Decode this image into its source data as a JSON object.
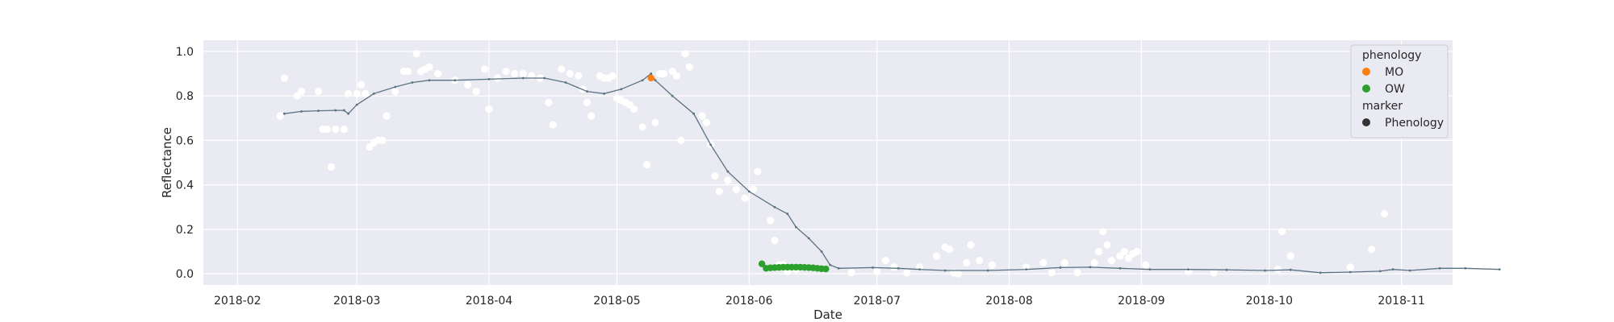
{
  "chart_data": {
    "type": "scatter",
    "title": "",
    "xlabel": "Date",
    "ylabel": "Reflectance",
    "x_axis_type": "date",
    "xlim": [
      "2018-01-24",
      "2018-11-13"
    ],
    "ylim": [
      -0.05,
      1.05
    ],
    "grid": true,
    "background": "#eaeaf2",
    "legend_position": "top-right",
    "x_ticks": [
      {
        "date": "2018-02-01",
        "label": "2018-02"
      },
      {
        "date": "2018-03-01",
        "label": "2018-03"
      },
      {
        "date": "2018-04-01",
        "label": "2018-04"
      },
      {
        "date": "2018-05-01",
        "label": "2018-05"
      },
      {
        "date": "2018-06-01",
        "label": "2018-06"
      },
      {
        "date": "2018-07-01",
        "label": "2018-07"
      },
      {
        "date": "2018-08-01",
        "label": "2018-08"
      },
      {
        "date": "2018-09-01",
        "label": "2018-09"
      },
      {
        "date": "2018-10-01",
        "label": "2018-10"
      },
      {
        "date": "2018-11-01",
        "label": "2018-11"
      }
    ],
    "y_ticks": [
      {
        "value": 0.0,
        "label": "0.0"
      },
      {
        "value": 0.2,
        "label": "0.2"
      },
      {
        "value": 0.4,
        "label": "0.4"
      },
      {
        "value": 0.6,
        "label": "0.6"
      },
      {
        "value": 0.8,
        "label": "0.8"
      },
      {
        "value": 1.0,
        "label": "1.0"
      }
    ],
    "legend": {
      "groups": [
        {
          "title": "phenology",
          "entries": [
            {
              "label": "MO",
              "color": "#ff7f0e"
            },
            {
              "label": "OW",
              "color": "#2ca02c"
            }
          ]
        },
        {
          "title": "marker",
          "entries": [
            {
              "label": "Phenology",
              "color": "#333333"
            }
          ]
        }
      ]
    },
    "smoothed_series": {
      "color": "#5a7282",
      "points": [
        [
          "2018-02-12",
          0.72
        ],
        [
          "2018-02-16",
          0.73
        ],
        [
          "2018-02-20",
          0.733
        ],
        [
          "2018-02-24",
          0.735
        ],
        [
          "2018-02-26",
          0.735
        ],
        [
          "2018-02-27",
          0.72
        ],
        [
          "2018-03-01",
          0.76
        ],
        [
          "2018-03-05",
          0.81
        ],
        [
          "2018-03-10",
          0.84
        ],
        [
          "2018-03-14",
          0.86
        ],
        [
          "2018-03-18",
          0.87
        ],
        [
          "2018-03-24",
          0.87
        ],
        [
          "2018-04-01",
          0.875
        ],
        [
          "2018-04-09",
          0.88
        ],
        [
          "2018-04-14",
          0.88
        ],
        [
          "2018-04-19",
          0.86
        ],
        [
          "2018-04-24",
          0.82
        ],
        [
          "2018-04-28",
          0.81
        ],
        [
          "2018-05-02",
          0.83
        ],
        [
          "2018-05-07",
          0.87
        ],
        [
          "2018-05-09",
          0.9
        ],
        [
          "2018-05-10",
          0.87
        ],
        [
          "2018-05-14",
          0.8
        ],
        [
          "2018-05-19",
          0.72
        ],
        [
          "2018-05-23",
          0.58
        ],
        [
          "2018-05-27",
          0.46
        ],
        [
          "2018-06-01",
          0.37
        ],
        [
          "2018-06-07",
          0.3
        ],
        [
          "2018-06-10",
          0.27
        ],
        [
          "2018-06-12",
          0.21
        ],
        [
          "2018-06-15",
          0.16
        ],
        [
          "2018-06-18",
          0.1
        ],
        [
          "2018-06-20",
          0.04
        ],
        [
          "2018-06-22",
          0.025
        ],
        [
          "2018-06-30",
          0.028
        ],
        [
          "2018-07-06",
          0.025
        ],
        [
          "2018-07-11",
          0.02
        ],
        [
          "2018-07-17",
          0.015
        ],
        [
          "2018-07-27",
          0.015
        ],
        [
          "2018-08-05",
          0.02
        ],
        [
          "2018-08-13",
          0.028
        ],
        [
          "2018-08-20",
          0.03
        ],
        [
          "2018-08-27",
          0.025
        ],
        [
          "2018-09-03",
          0.02
        ],
        [
          "2018-09-12",
          0.02
        ],
        [
          "2018-09-21",
          0.018
        ],
        [
          "2018-09-30",
          0.015
        ],
        [
          "2018-10-06",
          0.018
        ],
        [
          "2018-10-13",
          0.005
        ],
        [
          "2018-10-20",
          0.008
        ],
        [
          "2018-10-27",
          0.012
        ],
        [
          "2018-11-03",
          0.015
        ],
        [
          "2018-11-10",
          0.025
        ],
        [
          "2018-11-16",
          0.025
        ],
        [
          "2018-11-24",
          0.02
        ],
        [
          "2018-10-30",
          0.02
        ]
      ]
    },
    "observations": {
      "color": "#ffffff",
      "points": [
        [
          "2018-02-11",
          0.71
        ],
        [
          "2018-02-12",
          0.88
        ],
        [
          "2018-02-15",
          0.8
        ],
        [
          "2018-02-16",
          0.82
        ],
        [
          "2018-02-20",
          0.82
        ],
        [
          "2018-02-21",
          0.65
        ],
        [
          "2018-02-22",
          0.65
        ],
        [
          "2018-02-23",
          0.48
        ],
        [
          "2018-02-24",
          0.65
        ],
        [
          "2018-02-26",
          0.65
        ],
        [
          "2018-02-27",
          0.81
        ],
        [
          "2018-03-01",
          0.81
        ],
        [
          "2018-03-02",
          0.85
        ],
        [
          "2018-03-03",
          0.81
        ],
        [
          "2018-03-04",
          0.57
        ],
        [
          "2018-03-05",
          0.59
        ],
        [
          "2018-03-06",
          0.6
        ],
        [
          "2018-03-07",
          0.6
        ],
        [
          "2018-03-08",
          0.71
        ],
        [
          "2018-03-10",
          0.82
        ],
        [
          "2018-03-12",
          0.91
        ],
        [
          "2018-03-13",
          0.91
        ],
        [
          "2018-03-15",
          0.99
        ],
        [
          "2018-03-16",
          0.91
        ],
        [
          "2018-03-17",
          0.92
        ],
        [
          "2018-03-18",
          0.93
        ],
        [
          "2018-03-20",
          0.9
        ],
        [
          "2018-03-24",
          0.87
        ],
        [
          "2018-03-27",
          0.85
        ],
        [
          "2018-03-29",
          0.82
        ],
        [
          "2018-03-31",
          0.92
        ],
        [
          "2018-04-01",
          0.74
        ],
        [
          "2018-04-03",
          0.88
        ],
        [
          "2018-04-05",
          0.91
        ],
        [
          "2018-04-07",
          0.9
        ],
        [
          "2018-04-09",
          0.9
        ],
        [
          "2018-04-11",
          0.89
        ],
        [
          "2018-04-13",
          0.88
        ],
        [
          "2018-04-15",
          0.77
        ],
        [
          "2018-04-16",
          0.67
        ],
        [
          "2018-04-18",
          0.92
        ],
        [
          "2018-04-20",
          0.9
        ],
        [
          "2018-04-22",
          0.89
        ],
        [
          "2018-04-23",
          0.83
        ],
        [
          "2018-04-24",
          0.77
        ],
        [
          "2018-04-25",
          0.71
        ],
        [
          "2018-04-27",
          0.89
        ],
        [
          "2018-04-28",
          0.88
        ],
        [
          "2018-04-29",
          0.88
        ],
        [
          "2018-04-30",
          0.89
        ],
        [
          "2018-05-01",
          0.79
        ],
        [
          "2018-05-02",
          0.78
        ],
        [
          "2018-05-03",
          0.77
        ],
        [
          "2018-05-04",
          0.76
        ],
        [
          "2018-05-05",
          0.74
        ],
        [
          "2018-05-07",
          0.66
        ],
        [
          "2018-05-08",
          0.49
        ],
        [
          "2018-05-10",
          0.68
        ],
        [
          "2018-05-11",
          0.9
        ],
        [
          "2018-05-12",
          0.9
        ],
        [
          "2018-05-14",
          0.91
        ],
        [
          "2018-05-15",
          0.89
        ],
        [
          "2018-05-16",
          0.6
        ],
        [
          "2018-05-17",
          0.99
        ],
        [
          "2018-05-18",
          0.93
        ],
        [
          "2018-05-21",
          0.71
        ],
        [
          "2018-05-22",
          0.68
        ],
        [
          "2018-05-23",
          0.58
        ],
        [
          "2018-05-24",
          0.44
        ],
        [
          "2018-05-25",
          0.37
        ],
        [
          "2018-05-27",
          0.42
        ],
        [
          "2018-05-29",
          0.38
        ],
        [
          "2018-05-31",
          0.34
        ],
        [
          "2018-06-02",
          0.38
        ],
        [
          "2018-06-03",
          0.46
        ],
        [
          "2018-06-06",
          0.24
        ],
        [
          "2018-06-07",
          0.15
        ],
        [
          "2018-06-08",
          0.04
        ],
        [
          "2018-06-09",
          0.04
        ],
        [
          "2018-06-10",
          0.01
        ],
        [
          "2018-06-12",
          0.02
        ],
        [
          "2018-06-25",
          0.005
        ],
        [
          "2018-07-01",
          0.01
        ],
        [
          "2018-07-03",
          0.06
        ],
        [
          "2018-07-05",
          0.03
        ],
        [
          "2018-07-08",
          0.005
        ],
        [
          "2018-07-11",
          0.03
        ],
        [
          "2018-07-15",
          0.08
        ],
        [
          "2018-07-17",
          0.12
        ],
        [
          "2018-07-18",
          0.11
        ],
        [
          "2018-07-19",
          0.005
        ],
        [
          "2018-07-20",
          0.0
        ],
        [
          "2018-07-22",
          0.05
        ],
        [
          "2018-07-23",
          0.13
        ],
        [
          "2018-07-25",
          0.06
        ],
        [
          "2018-07-28",
          0.04
        ],
        [
          "2018-08-05",
          0.03
        ],
        [
          "2018-08-09",
          0.05
        ],
        [
          "2018-08-11",
          0.005
        ],
        [
          "2018-08-14",
          0.05
        ],
        [
          "2018-08-17",
          0.005
        ],
        [
          "2018-08-21",
          0.05
        ],
        [
          "2018-08-22",
          0.1
        ],
        [
          "2018-08-23",
          0.19
        ],
        [
          "2018-08-24",
          0.13
        ],
        [
          "2018-08-25",
          0.06
        ],
        [
          "2018-08-27",
          0.08
        ],
        [
          "2018-08-28",
          0.1
        ],
        [
          "2018-08-29",
          0.07
        ],
        [
          "2018-08-30",
          0.09
        ],
        [
          "2018-08-31",
          0.1
        ],
        [
          "2018-09-02",
          0.04
        ],
        [
          "2018-09-12",
          0.01
        ],
        [
          "2018-09-18",
          0.005
        ],
        [
          "2018-10-03",
          0.02
        ],
        [
          "2018-10-04",
          0.19
        ],
        [
          "2018-10-06",
          0.08
        ],
        [
          "2018-10-20",
          0.03
        ],
        [
          "2018-10-25",
          0.11
        ],
        [
          "2018-10-28",
          0.27
        ]
      ]
    },
    "phenology_points": [
      {
        "category": "MO",
        "date": "2018-05-09",
        "value": 0.88
      },
      {
        "category": "OW",
        "date": "2018-06-04",
        "value": 0.045
      },
      {
        "category": "OW",
        "date": "2018-06-05",
        "value": 0.025
      },
      {
        "category": "OW",
        "date": "2018-06-06",
        "value": 0.027
      },
      {
        "category": "OW",
        "date": "2018-06-07",
        "value": 0.028
      },
      {
        "category": "OW",
        "date": "2018-06-08",
        "value": 0.029
      },
      {
        "category": "OW",
        "date": "2018-06-09",
        "value": 0.03
      },
      {
        "category": "OW",
        "date": "2018-06-10",
        "value": 0.03
      },
      {
        "category": "OW",
        "date": "2018-06-11",
        "value": 0.03
      },
      {
        "category": "OW",
        "date": "2018-06-12",
        "value": 0.03
      },
      {
        "category": "OW",
        "date": "2018-06-13",
        "value": 0.03
      },
      {
        "category": "OW",
        "date": "2018-06-14",
        "value": 0.029
      },
      {
        "category": "OW",
        "date": "2018-06-15",
        "value": 0.028
      },
      {
        "category": "OW",
        "date": "2018-06-16",
        "value": 0.027
      },
      {
        "category": "OW",
        "date": "2018-06-17",
        "value": 0.025
      },
      {
        "category": "OW",
        "date": "2018-06-18",
        "value": 0.023
      },
      {
        "category": "OW",
        "date": "2018-06-19",
        "value": 0.022
      }
    ]
  }
}
